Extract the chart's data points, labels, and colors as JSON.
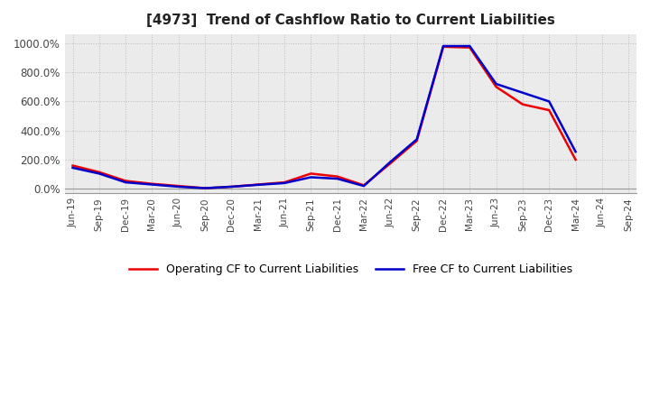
{
  "title": "[4973]  Trend of Cashflow Ratio to Current Liabilities",
  "x_labels": [
    "Jun-19",
    "Sep-19",
    "Dec-19",
    "Mar-20",
    "Jun-20",
    "Sep-20",
    "Dec-20",
    "Mar-21",
    "Jun-21",
    "Sep-21",
    "Dec-21",
    "Mar-22",
    "Jun-22",
    "Sep-22",
    "Dec-22",
    "Mar-23",
    "Jun-23",
    "Sep-23",
    "Dec-23",
    "Mar-24",
    "Jun-24",
    "Sep-24"
  ],
  "operating_cf": [
    160,
    115,
    55,
    35,
    20,
    5,
    15,
    30,
    45,
    105,
    85,
    25,
    175,
    330,
    975,
    970,
    700,
    580,
    540,
    200,
    null,
    null
  ],
  "free_cf": [
    145,
    105,
    45,
    30,
    15,
    5,
    15,
    28,
    40,
    80,
    70,
    20,
    185,
    340,
    980,
    980,
    720,
    660,
    600,
    255,
    null,
    null
  ],
  "operating_color": "#ee0000",
  "free_color": "#0000cc",
  "bg_color": "#ffffff",
  "plot_bg_color": "#ebebeb",
  "grid_color": "#bbbbbb",
  "ylim": [
    -30,
    1060
  ],
  "yticks": [
    0,
    200,
    400,
    600,
    800,
    1000
  ],
  "ytick_labels": [
    "0.0%",
    "200.0%",
    "400.0%",
    "600.0%",
    "800.0%",
    "1000.0%"
  ],
  "legend_operating": "Operating CF to Current Liabilities",
  "legend_free": "Free CF to Current Liabilities",
  "line_width": 1.8
}
